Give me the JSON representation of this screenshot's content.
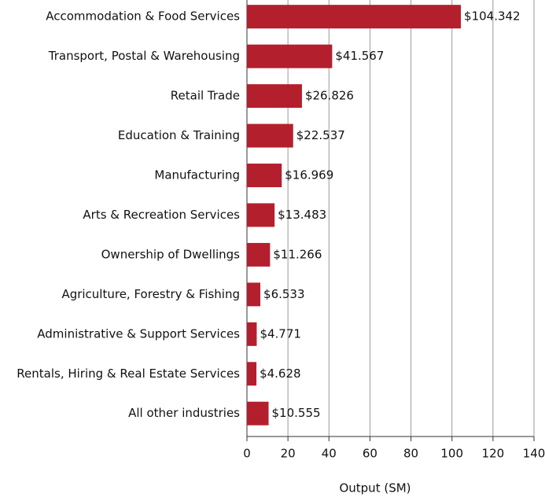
{
  "chart_data": {
    "type": "bar",
    "orientation": "horizontal",
    "x_label": "Output (SM)",
    "categories": [
      "Accommodation & Food Services",
      "Transport, Postal & Warehousing",
      "Retail Trade",
      "Education & Training",
      "Manufacturing",
      "Arts & Recreation Services",
      "Ownership of Dwellings",
      "Agriculture, Forestry & Fishing",
      "Administrative & Support Services",
      "Rentals, Hiring & Real Estate Services",
      "All other industries"
    ],
    "values": [
      104.342,
      41.567,
      26.826,
      22.537,
      16.969,
      13.483,
      11.266,
      6.533,
      4.771,
      4.628,
      10.555
    ],
    "value_labels": [
      "$104.342",
      "$41.567",
      "$26.826",
      "$22.537",
      "$16.969",
      "$13.483",
      "$11.266",
      "$6.533",
      "$4.771",
      "$4.628",
      "$10.555"
    ],
    "color": "#b41f2d",
    "xlim": [
      0,
      140
    ],
    "xticks": [
      0,
      20,
      40,
      60,
      80,
      100,
      120,
      140
    ],
    "grid": true
  }
}
